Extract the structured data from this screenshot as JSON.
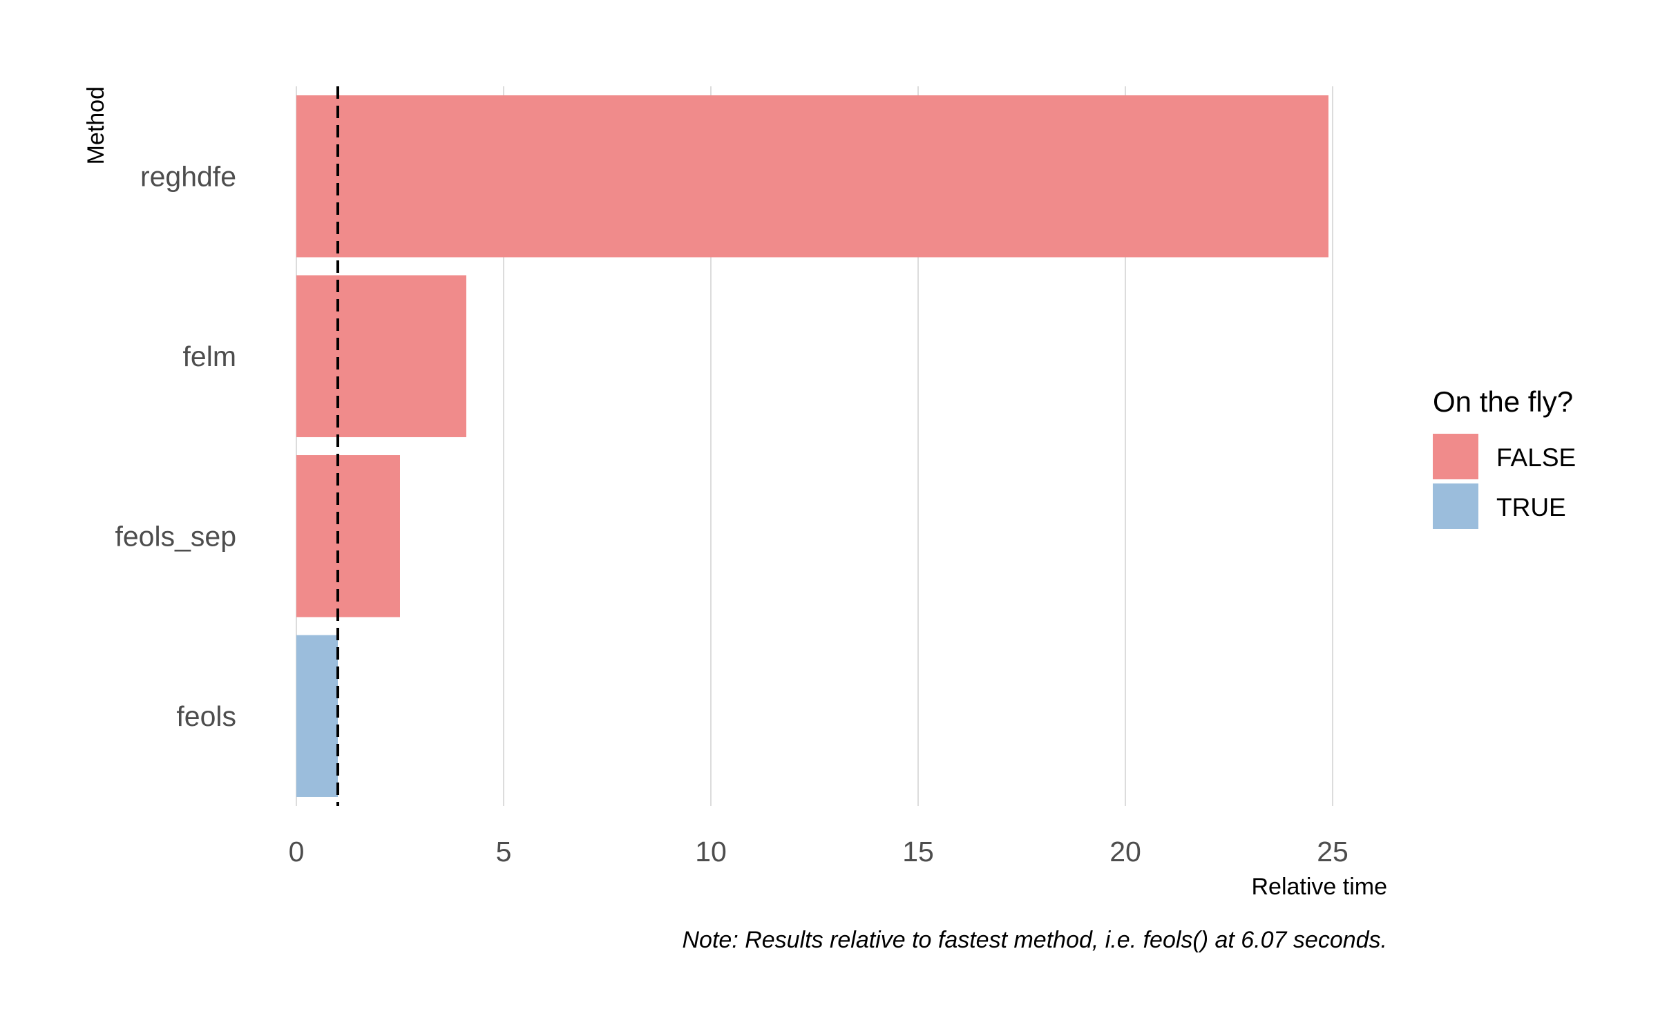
{
  "chart_data": {
    "type": "bar",
    "orientation": "horizontal",
    "ylabel": "Method",
    "xlabel": "Relative time",
    "categories": [
      "reghdfe",
      "felm",
      "feols_sep",
      "feols"
    ],
    "values": [
      24.9,
      4.1,
      2.5,
      1.0
    ],
    "on_the_fly": [
      "FALSE",
      "FALSE",
      "FALSE",
      "TRUE"
    ],
    "xlim": [
      0,
      25
    ],
    "x_ticks": [
      0,
      5,
      10,
      15,
      20,
      25
    ],
    "x_tick_labels": [
      "0",
      "5",
      "10",
      "15",
      "20",
      "25"
    ],
    "reference_line": {
      "x": 1.0,
      "style": "dashed",
      "color": "#000000"
    },
    "grid": "vertical-major",
    "legend": {
      "title": "On the fly?",
      "placement": "right",
      "entries": [
        {
          "label": "FALSE",
          "color": "#f08b8b"
        },
        {
          "label": "TRUE",
          "color": "#9bbddc"
        }
      ]
    },
    "note": "Note: Results relative to fastest method, i.e. feols() at 6.07 seconds."
  },
  "colors": {
    "FALSE": "#f08b8b",
    "TRUE": "#9bbddc",
    "grid": "#d0d0d0",
    "text": "#4d4d4d"
  }
}
